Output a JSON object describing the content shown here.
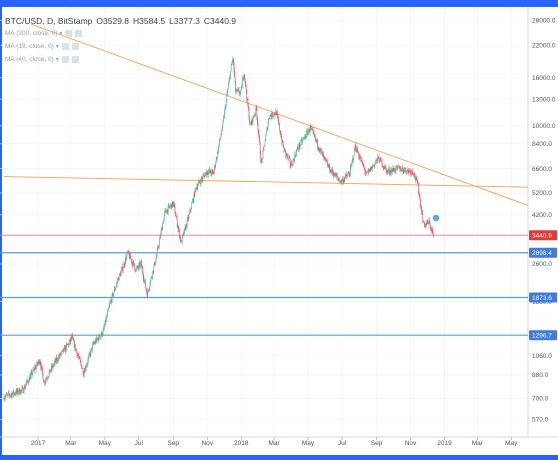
{
  "colors": {
    "frame_accent": "#2962ff",
    "trendline": "#f5a05a",
    "hline": "#5b9bd5",
    "price_line": "#e57399",
    "candle_up": "#53b987",
    "candle_down": "#eb4d5c",
    "grid": "#eef1f4",
    "current_label_bg": "#e53935",
    "level_label_bg": "#3f7be0"
  },
  "legend": {
    "symbol": "BTC/USD, D, BitStamp",
    "open": "O3529.8",
    "high": "H3584.5",
    "low": "L3377.3",
    "close": "C3440.9",
    "indicators": [
      {
        "label": "MA (200, close, 0)"
      },
      {
        "label": "MA (18, close, 0)"
      },
      {
        "label": "MA (40, close, 0)"
      }
    ]
  },
  "chart_data": {
    "type": "line",
    "title": "BTC/USD, D, BitStamp",
    "xlabel": "",
    "ylabel": "",
    "y_scale": "log",
    "ylim": [
      480,
      31000
    ],
    "xlim": [
      "2016-11-01",
      "2019-05-31"
    ],
    "grid": true,
    "price_ticks": [
      "28000.0",
      "22000.0",
      "16000.0",
      "13000.0",
      "10000.0",
      "8400.0",
      "6600.0",
      "5200.0",
      "4200.0",
      "3440.9",
      "2898.4",
      "2600.0",
      "1873.6",
      "1800.0",
      "1296.7",
      "1060.0",
      "880.0",
      "700.0",
      "570.0"
    ],
    "price_tick_values": [
      28000,
      22000,
      16000,
      13000,
      10000,
      8400,
      6600,
      5200,
      4200,
      3440.9,
      2898.4,
      2600,
      1873.6,
      1800,
      1296.7,
      1060,
      880,
      700,
      570
    ],
    "time_ticks": [
      "2017",
      "Mar",
      "May",
      "Jul",
      "Sep",
      "Nov",
      "2018",
      "Mar",
      "May",
      "Jul",
      "Sep",
      "Nov",
      "2019",
      "Mar",
      "May"
    ],
    "time_tick_dates": [
      "2017-01-01",
      "2017-03-01",
      "2017-05-01",
      "2017-07-01",
      "2017-09-01",
      "2017-11-01",
      "2018-01-01",
      "2018-03-01",
      "2018-05-01",
      "2018-07-01",
      "2018-09-01",
      "2018-11-01",
      "2019-01-01",
      "2019-03-01",
      "2019-05-01"
    ],
    "series": [
      {
        "values_x": [
          "2016-11-01",
          "2016-12-05",
          "2016-12-20",
          "2017-01-04",
          "2017-01-12",
          "2017-02-01",
          "2017-02-25",
          "2017-03-03",
          "2017-03-24",
          "2017-04-10",
          "2017-04-28",
          "2017-05-10",
          "2017-05-25",
          "2017-06-01",
          "2017-06-11",
          "2017-06-26",
          "2017-07-05",
          "2017-07-16",
          "2017-08-01",
          "2017-08-17",
          "2017-09-01",
          "2017-09-15",
          "2017-09-29",
          "2017-10-12",
          "2017-10-31",
          "2017-11-12",
          "2017-11-28",
          "2017-12-07",
          "2017-12-17",
          "2017-12-22",
          "2017-12-31",
          "2018-01-06",
          "2018-01-17",
          "2018-01-28",
          "2018-02-06",
          "2018-02-20",
          "2018-03-05",
          "2018-03-18",
          "2018-04-01",
          "2018-04-12",
          "2018-05-05",
          "2018-05-29",
          "2018-06-10",
          "2018-06-29",
          "2018-07-15",
          "2018-07-25",
          "2018-08-14",
          "2018-08-30",
          "2018-09-05",
          "2018-09-20",
          "2018-10-10",
          "2018-11-06",
          "2018-11-14",
          "2018-11-20",
          "2018-11-25",
          "2018-12-04",
          "2018-12-12"
        ],
        "values": [
          710,
          760,
          880,
          1020,
          820,
          1000,
          1190,
          1260,
          900,
          1180,
          1340,
          1750,
          2250,
          2450,
          2900,
          2450,
          2600,
          1930,
          2750,
          4300,
          4700,
          3200,
          4150,
          5500,
          6400,
          6300,
          9800,
          13800,
          19500,
          14000,
          13800,
          16900,
          10000,
          11800,
          6900,
          11000,
          11400,
          8000,
          6800,
          8000,
          9800,
          7300,
          6500,
          5800,
          6300,
          8200,
          6200,
          7000,
          7300,
          6400,
          6600,
          6400,
          5600,
          4500,
          3800,
          3900,
          3440
        ]
      }
    ],
    "levels": [
      {
        "label": "3440.9",
        "value": 3440.9
      },
      {
        "label": "2898.4",
        "value": 2898.4
      },
      {
        "label": "1873.6",
        "value": 1873.6
      },
      {
        "label": "1296.7",
        "value": 1296.7
      }
    ],
    "trendlines": [
      {
        "from": [
          "2016-12-20",
          27000
        ],
        "to": [
          "2019-05-31",
          4600
        ]
      },
      {
        "from": [
          "2016-11-01",
          6100
        ],
        "to": [
          "2019-05-31",
          5500
        ]
      }
    ]
  }
}
